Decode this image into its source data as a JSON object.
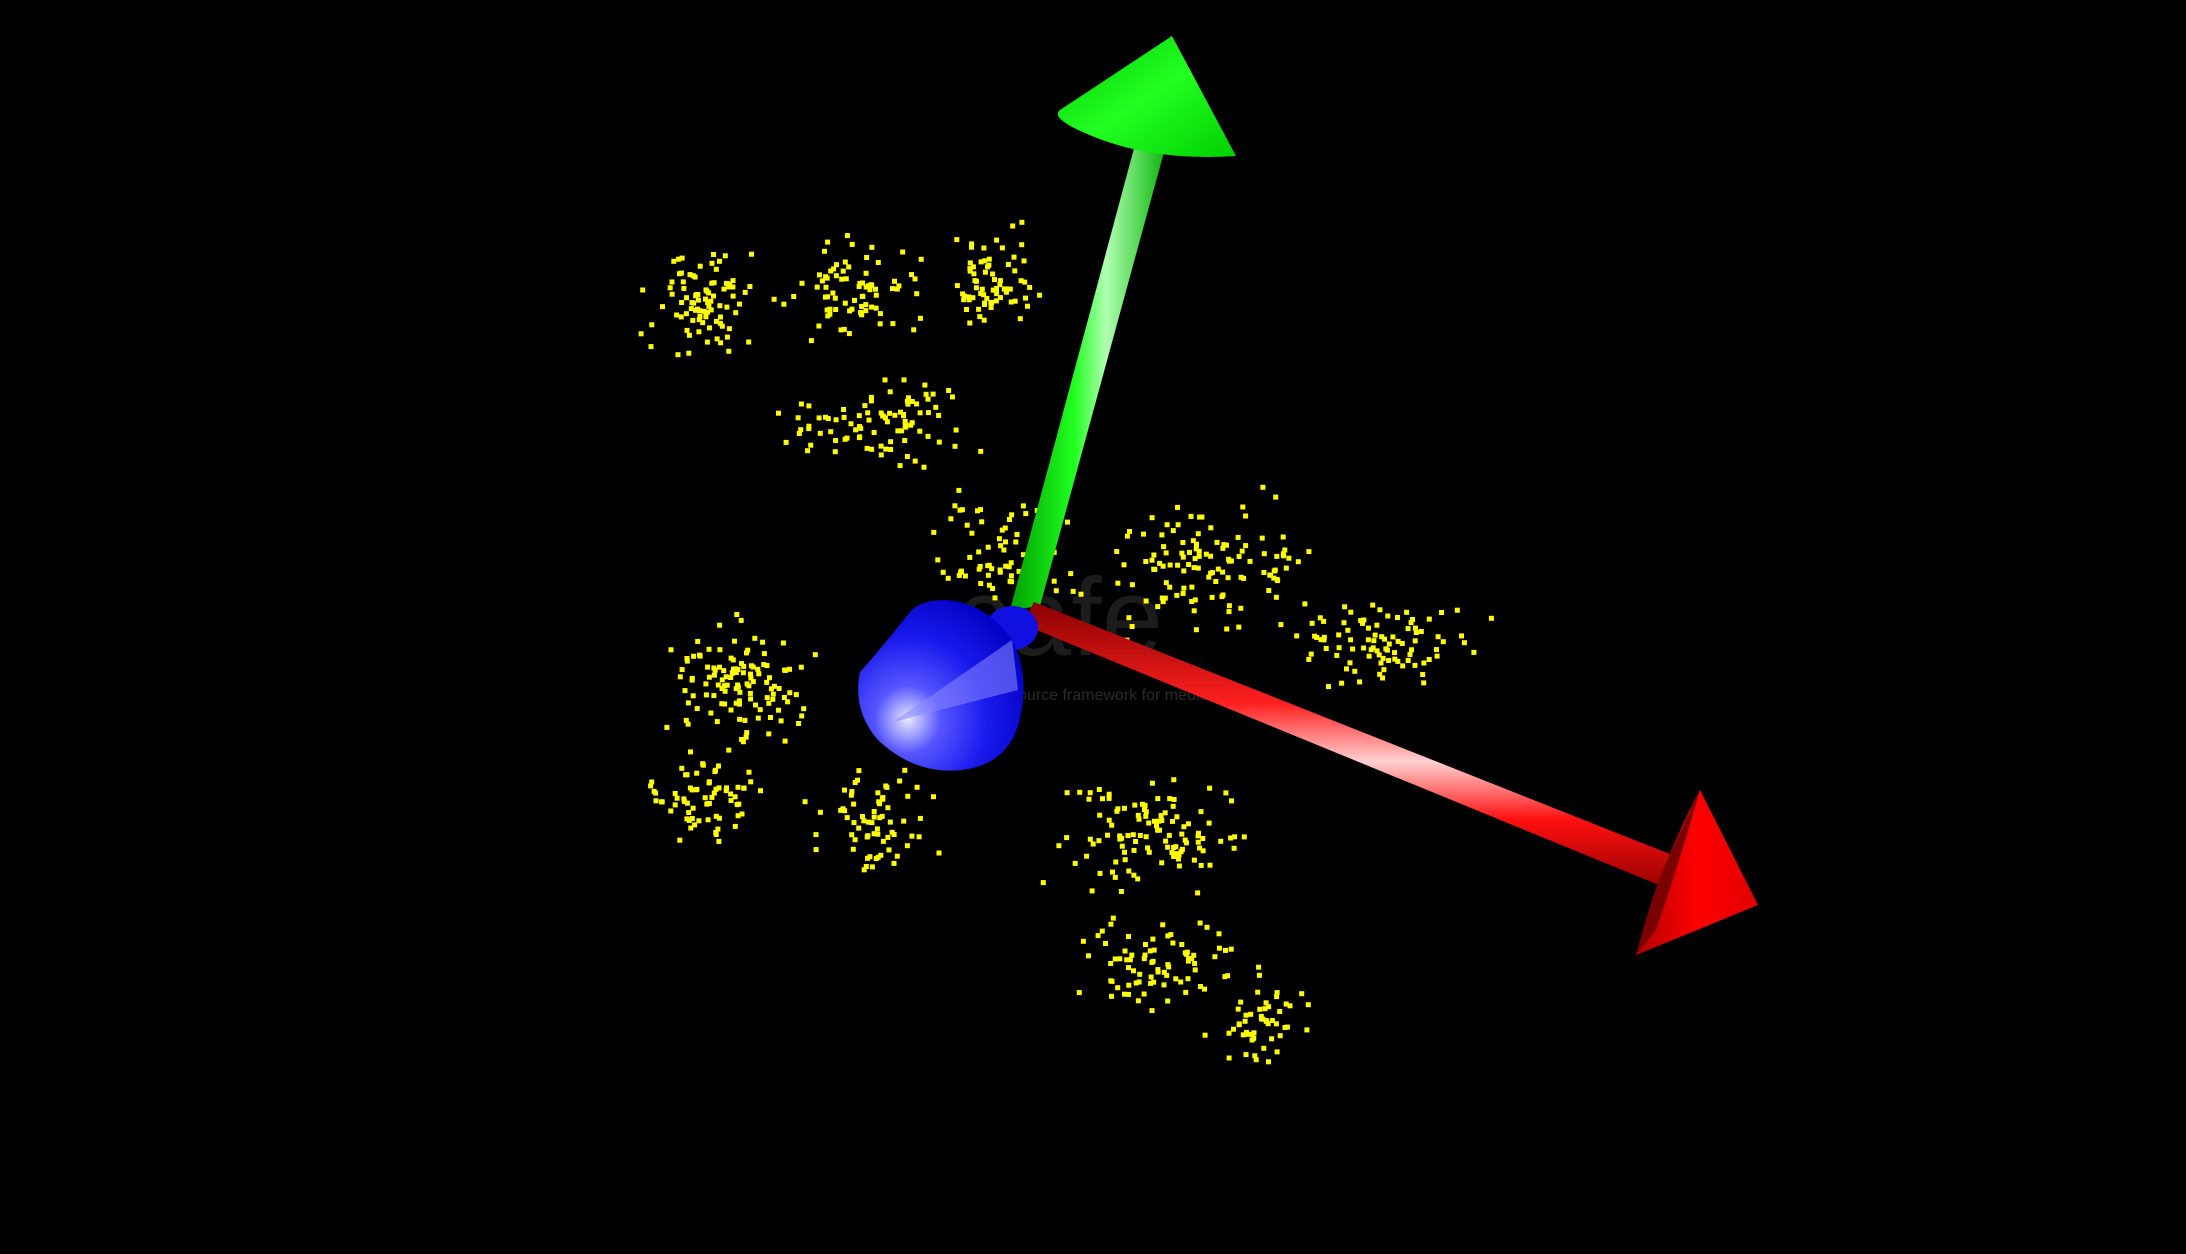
{
  "viewer": {
    "background_color": "#000000"
  },
  "watermark": {
    "logo_text": "cafe",
    "tagline": "source framework for medical"
  },
  "point_cloud": {
    "color": "#ffff00"
  },
  "axes": {
    "x": {
      "color": "#ff0000",
      "icon": "red-x-axis-arrow"
    },
    "y": {
      "color": "#00ee00",
      "icon": "green-y-axis-arrow"
    },
    "z": {
      "color": "#0000ff",
      "icon": "blue-z-axis-cone"
    }
  }
}
